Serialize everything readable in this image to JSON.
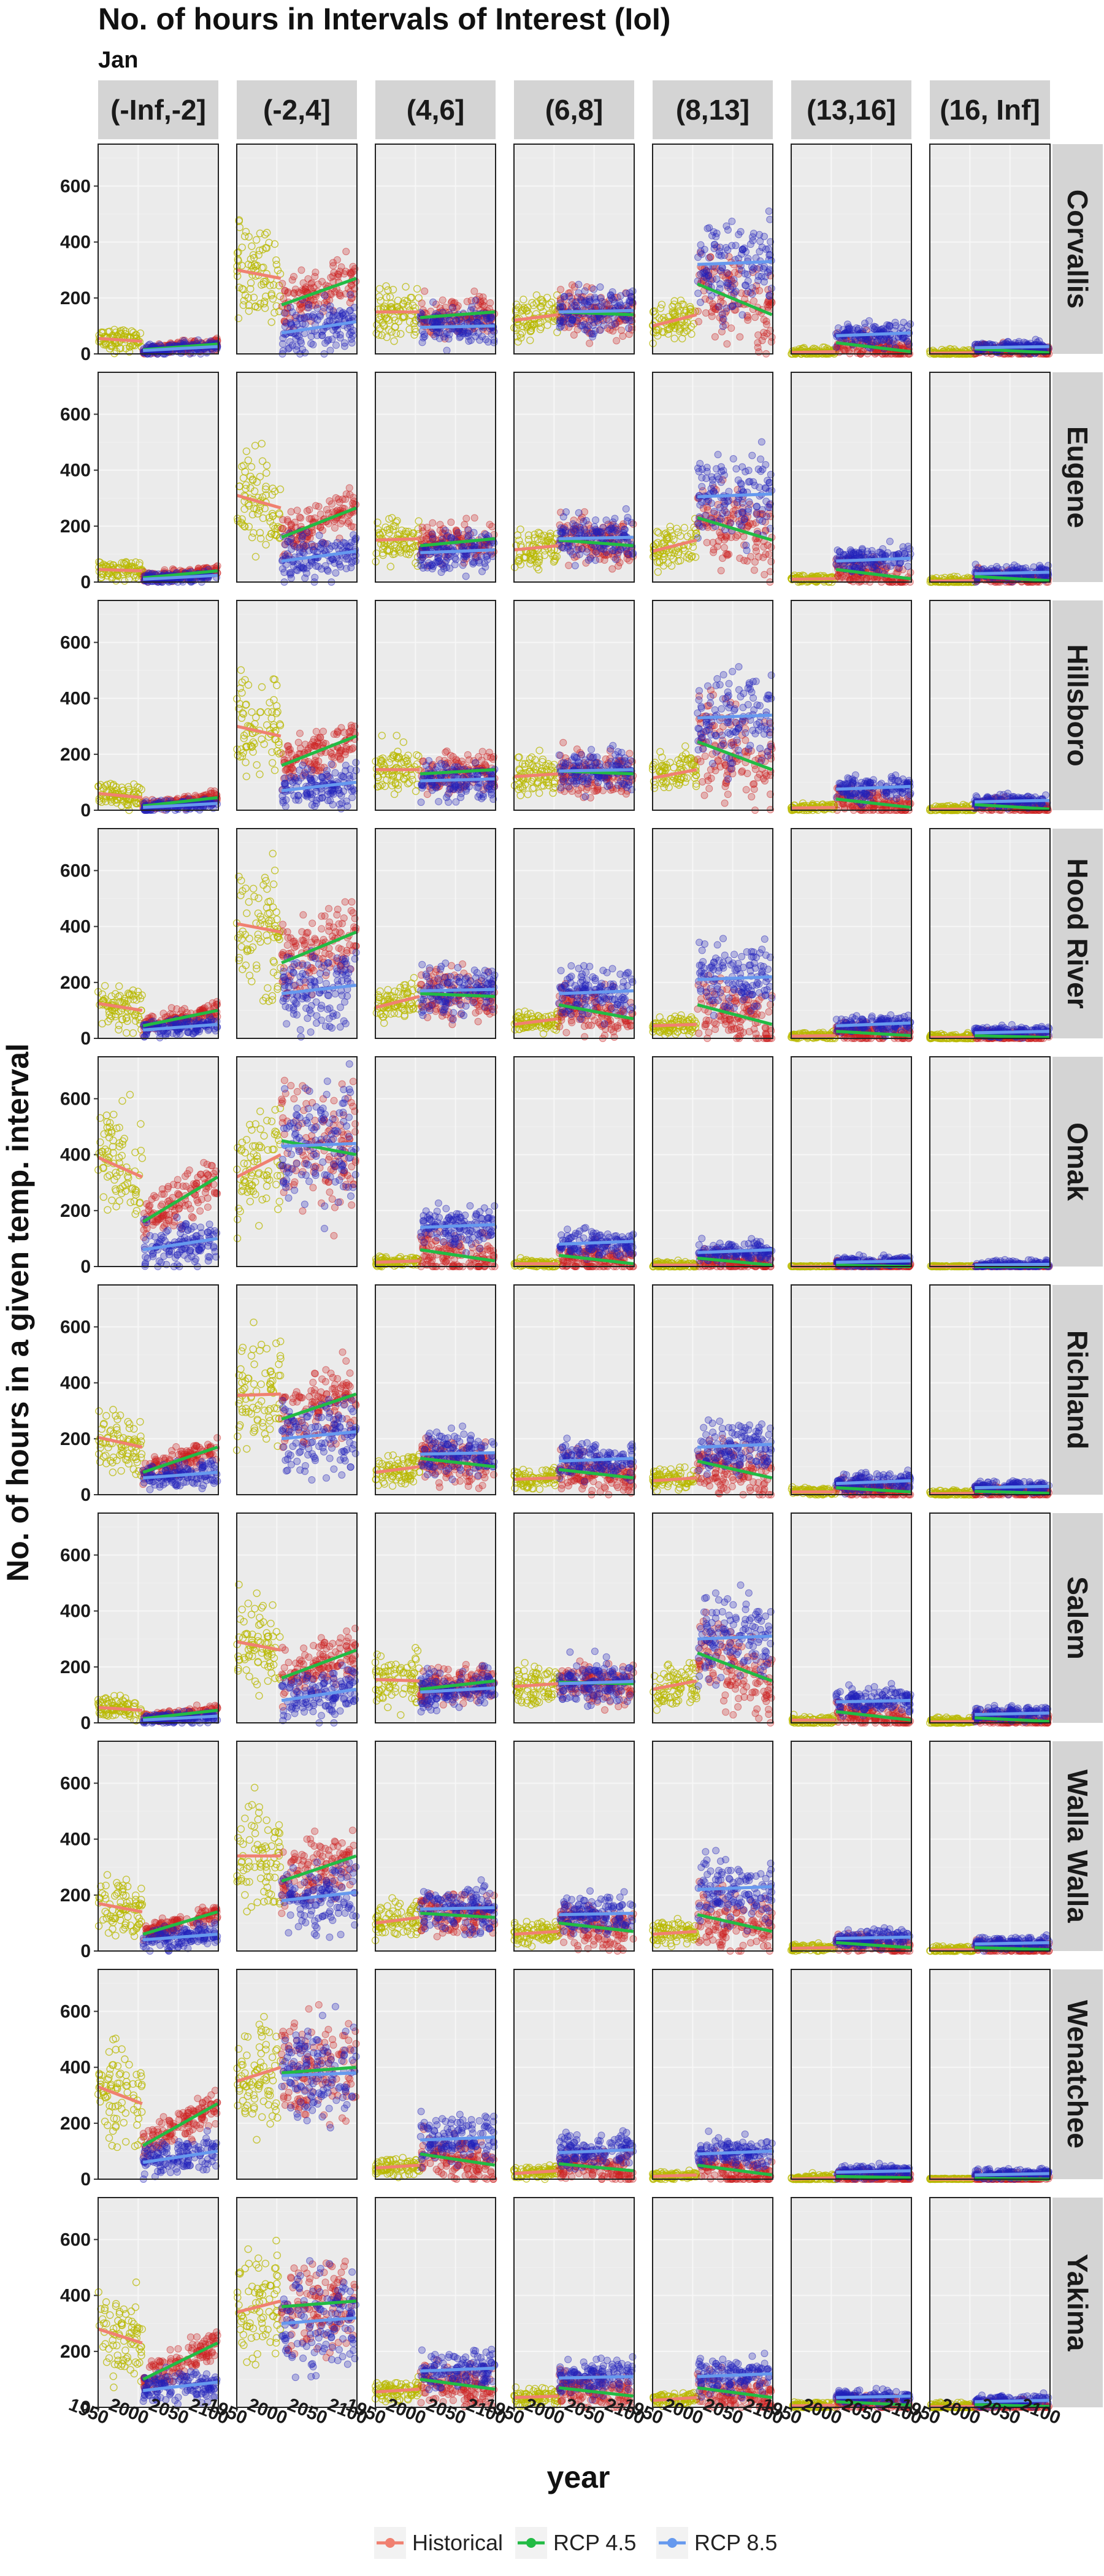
{
  "chart_data": {
    "type": "scatter",
    "title": "No. of hours in Intervals of Interest (IoI)",
    "subtitle": "Jan",
    "xlabel": "year",
    "ylabel": "No. of hours in a given temp. interval",
    "intervals": [
      "(-Inf,-2]",
      "(-2,4]",
      "(4,6]",
      "(6,8]",
      "(8,13]",
      "(13,16]",
      "(16, Inf]"
    ],
    "locations": [
      "Corvallis",
      "Eugene",
      "Hillsboro",
      "Hood River",
      "Omak",
      "Richland",
      "Salem",
      "Walla Walla",
      "Wenatchee",
      "Yakima"
    ],
    "xlim": [
      1950,
      2100
    ],
    "x_ticks": [
      1950,
      2000,
      2050,
      2100
    ],
    "x_tick_labels": [
      "1950",
      "2000",
      "2050",
      "2100"
    ],
    "ylim": [
      0,
      750
    ],
    "y_ticks": [
      0,
      200,
      400,
      600
    ],
    "grid": true,
    "legend_position": "bottom",
    "series": [
      {
        "name": "Historical",
        "x_range": [
          1950,
          2005
        ],
        "color": "#f08070",
        "point_color": "#b8b800"
      },
      {
        "name": "RCP 4.5",
        "x_range": [
          2006,
          2099
        ],
        "color": "#22bb44",
        "point_color": "#cc2222"
      },
      {
        "name": "RCP 8.5",
        "x_range": [
          2006,
          2099
        ],
        "color": "#6699ee",
        "point_color": "#2222bb"
      }
    ],
    "trend_fits": {
      "Corvallis": [
        [
          55,
          45,
          15,
          35,
          12,
          26
        ],
        [
          300,
          270,
          175,
          270,
          75,
          115
        ],
        [
          150,
          150,
          130,
          150,
          95,
          100
        ],
        [
          120,
          140,
          150,
          140,
          150,
          155
        ],
        [
          100,
          140,
          250,
          140,
          320,
          330
        ],
        [
          5,
          8,
          40,
          8,
          65,
          75
        ],
        [
          2,
          4,
          18,
          4,
          22,
          26
        ]
      ],
      "Eugene": [
        [
          45,
          40,
          15,
          40,
          10,
          24
        ],
        [
          310,
          265,
          160,
          265,
          75,
          110
        ],
        [
          150,
          155,
          130,
          155,
          105,
          115
        ],
        [
          115,
          130,
          150,
          130,
          155,
          160
        ],
        [
          110,
          150,
          230,
          150,
          305,
          315
        ],
        [
          10,
          12,
          45,
          12,
          75,
          85
        ],
        [
          3,
          5,
          20,
          5,
          30,
          35
        ]
      ],
      "Hillsboro": [
        [
          60,
          45,
          15,
          45,
          10,
          24
        ],
        [
          300,
          265,
          160,
          265,
          70,
          100
        ],
        [
          145,
          145,
          130,
          145,
          105,
          112
        ],
        [
          120,
          130,
          140,
          130,
          140,
          145
        ],
        [
          115,
          145,
          245,
          145,
          330,
          340
        ],
        [
          8,
          10,
          40,
          10,
          75,
          85
        ],
        [
          3,
          4,
          20,
          4,
          30,
          35
        ]
      ],
      "Hood River": [
        [
          125,
          100,
          45,
          100,
          30,
          50
        ],
        [
          410,
          380,
          270,
          380,
          160,
          190
        ],
        [
          110,
          150,
          160,
          150,
          170,
          175
        ],
        [
          50,
          70,
          120,
          70,
          160,
          170
        ],
        [
          45,
          50,
          120,
          50,
          210,
          220
        ],
        [
          8,
          10,
          25,
          10,
          45,
          55
        ],
        [
          3,
          3,
          10,
          3,
          20,
          25
        ]
      ],
      "Omak": [
        [
          390,
          320,
          160,
          320,
          60,
          100
        ],
        [
          320,
          400,
          450,
          400,
          430,
          440
        ],
        [
          15,
          20,
          60,
          20,
          140,
          150
        ],
        [
          10,
          10,
          40,
          10,
          80,
          90
        ],
        [
          5,
          5,
          30,
          5,
          50,
          60
        ],
        [
          0,
          0,
          5,
          0,
          15,
          20
        ],
        [
          0,
          0,
          0,
          0,
          5,
          8
        ]
      ],
      "Richland": [
        [
          205,
          170,
          80,
          170,
          60,
          80
        ],
        [
          355,
          360,
          270,
          360,
          200,
          225
        ],
        [
          80,
          100,
          130,
          100,
          145,
          150
        ],
        [
          55,
          60,
          90,
          60,
          120,
          130
        ],
        [
          50,
          60,
          120,
          60,
          170,
          180
        ],
        [
          10,
          10,
          25,
          10,
          40,
          50
        ],
        [
          3,
          5,
          12,
          5,
          25,
          30
        ]
      ],
      "Salem": [
        [
          55,
          45,
          15,
          45,
          10,
          24
        ],
        [
          290,
          260,
          160,
          260,
          80,
          120
        ],
        [
          155,
          150,
          120,
          150,
          110,
          125
        ],
        [
          130,
          140,
          145,
          140,
          140,
          148
        ],
        [
          120,
          150,
          250,
          150,
          300,
          310
        ],
        [
          10,
          10,
          40,
          10,
          75,
          80
        ],
        [
          3,
          5,
          18,
          5,
          30,
          35
        ]
      ],
      "Walla Walla": [
        [
          170,
          140,
          60,
          140,
          40,
          60
        ],
        [
          340,
          340,
          250,
          340,
          180,
          210
        ],
        [
          100,
          120,
          135,
          120,
          150,
          155
        ],
        [
          60,
          70,
          100,
          70,
          130,
          135
        ],
        [
          60,
          70,
          130,
          70,
          220,
          230
        ],
        [
          10,
          12,
          30,
          12,
          45,
          50
        ],
        [
          3,
          5,
          12,
          5,
          25,
          30
        ]
      ],
      "Wenatchee": [
        [
          330,
          270,
          120,
          270,
          60,
          100
        ],
        [
          350,
          400,
          380,
          400,
          370,
          380
        ],
        [
          40,
          50,
          90,
          50,
          140,
          150
        ],
        [
          20,
          30,
          55,
          30,
          95,
          105
        ],
        [
          10,
          15,
          50,
          15,
          90,
          100
        ],
        [
          0,
          5,
          10,
          5,
          25,
          30
        ],
        [
          0,
          0,
          3,
          0,
          15,
          20
        ]
      ],
      "Yakima": [
        [
          280,
          230,
          100,
          230,
          60,
          90
        ],
        [
          340,
          380,
          360,
          380,
          300,
          320
        ],
        [
          55,
          65,
          100,
          65,
          130,
          140
        ],
        [
          35,
          40,
          70,
          40,
          105,
          110
        ],
        [
          25,
          35,
          70,
          35,
          110,
          120
        ],
        [
          5,
          8,
          20,
          8,
          35,
          40
        ],
        [
          2,
          3,
          10,
          3,
          20,
          25
        ]
      ]
    }
  },
  "legend": {
    "items": [
      {
        "label": "Historical",
        "color": "#f08070"
      },
      {
        "label": "RCP 4.5",
        "color": "#22bb44"
      },
      {
        "label": "RCP 8.5",
        "color": "#6699ee"
      }
    ]
  }
}
